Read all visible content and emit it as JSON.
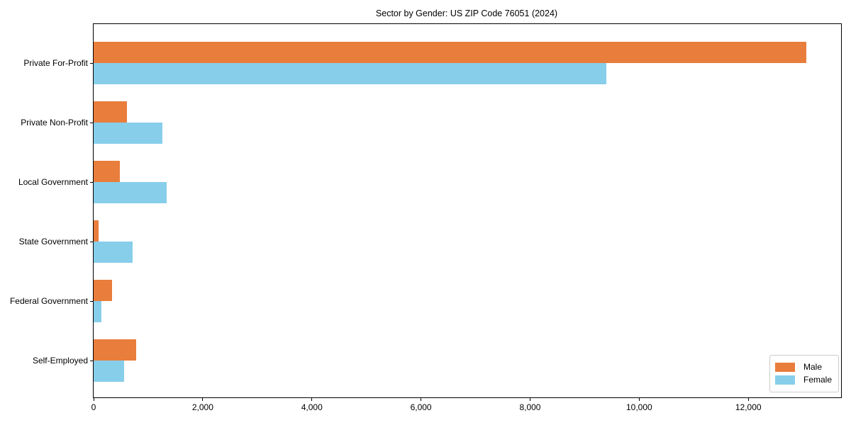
{
  "title": "Sector by Gender: US ZIP Code 76051 (2024)",
  "chart_data": {
    "type": "bar",
    "orientation": "horizontal",
    "title": "Sector by Gender: US ZIP Code 76051 (2024)",
    "xlabel": "",
    "ylabel": "",
    "categories": [
      "Private For-Profit",
      "Private Non-Profit",
      "Local Government",
      "State Government",
      "Federal Government",
      "Self-Employed"
    ],
    "series": [
      {
        "name": "Male",
        "color": "#e87d3c",
        "values": [
          13060,
          610,
          480,
          95,
          335,
          780
        ]
      },
      {
        "name": "Female",
        "color": "#87ceeb",
        "values": [
          9395,
          1260,
          1335,
          715,
          140,
          565
        ]
      }
    ],
    "xlim": [
      0,
      13700
    ],
    "xticks": [
      0,
      2000,
      4000,
      6000,
      8000,
      10000,
      12000
    ],
    "xtick_labels": [
      "0",
      "2,000",
      "4,000",
      "6,000",
      "8,000",
      "10,000",
      "12,000"
    ],
    "grid": false,
    "legend_position": "lower right",
    "background_color": "#ffffff",
    "axis_color": "#000000",
    "legend_border_color": "#cccccc"
  }
}
